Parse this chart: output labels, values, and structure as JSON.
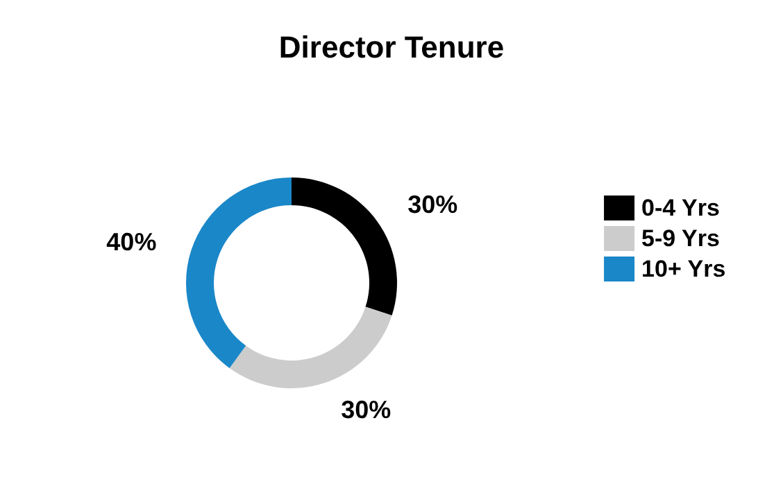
{
  "chart_data": {
    "type": "donut",
    "title": "Director Tenure",
    "categories": [
      "0-4 Yrs",
      "5-9 Yrs",
      "10+ Yrs"
    ],
    "values": [
      30,
      30,
      40
    ],
    "colors": [
      "#000000",
      "#cccccc",
      "#1a87c8"
    ],
    "value_labels": [
      "30%",
      "30%",
      "40%"
    ],
    "legend": "right"
  }
}
